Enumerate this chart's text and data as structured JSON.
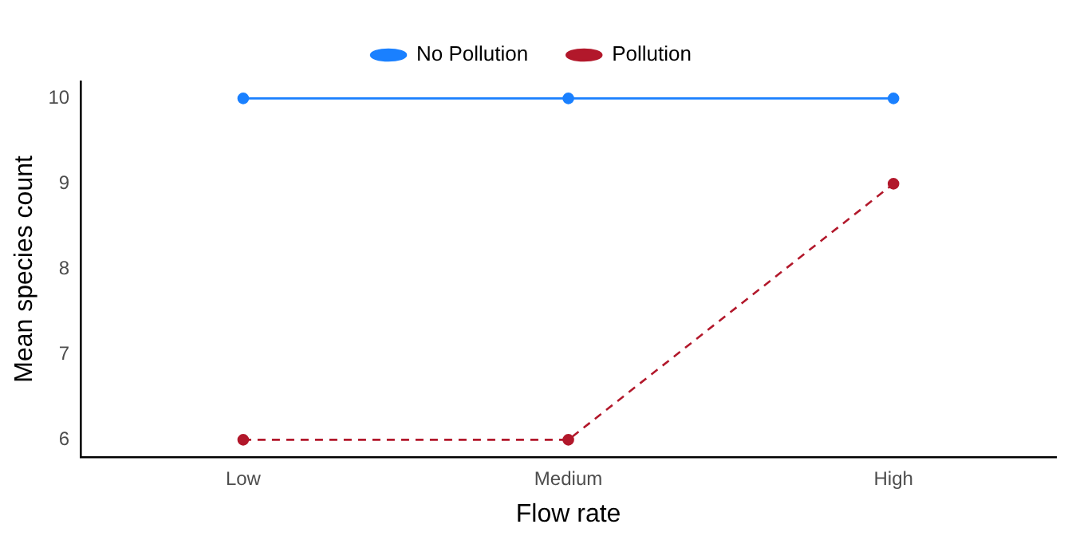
{
  "chart_data": {
    "type": "line",
    "xlabel": "Flow rate",
    "ylabel": "Mean species count",
    "categories": [
      "Low",
      "Medium",
      "High"
    ],
    "series": [
      {
        "name": "No Pollution",
        "color": "#1a80ff",
        "values": [
          10,
          10,
          10
        ],
        "line_style": "solid"
      },
      {
        "name": "Pollution",
        "color": "#b2182b",
        "values": [
          6,
          6,
          9
        ],
        "line_style": "dashed"
      }
    ],
    "ylim": [
      5.8,
      10.2
    ],
    "yticks": [
      6,
      7,
      8,
      9,
      10
    ],
    "grid": false,
    "legend": "top",
    "marker": "circle"
  }
}
